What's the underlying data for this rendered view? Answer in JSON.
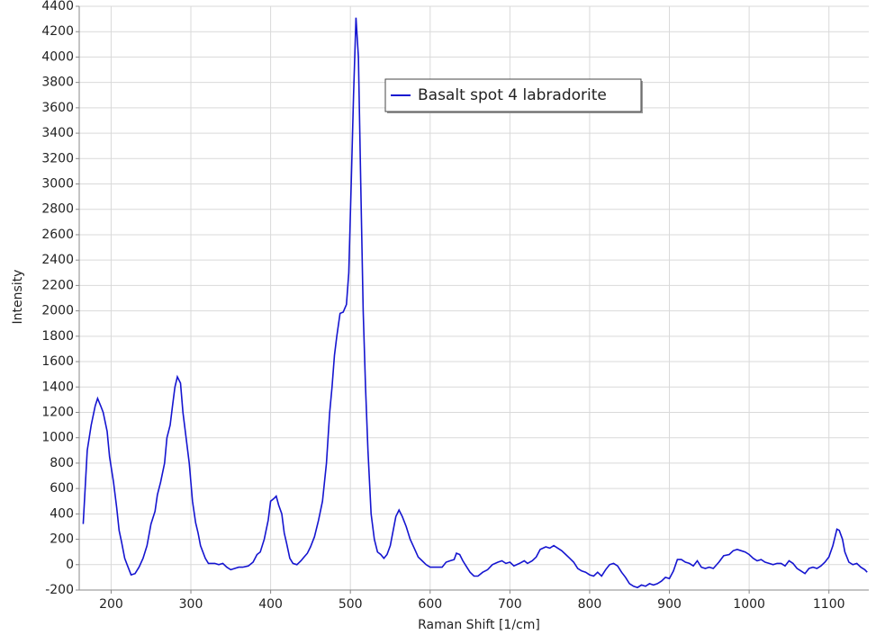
{
  "chart_data": {
    "type": "line",
    "x_label": "Raman Shift [1/cm]",
    "y_label": "Intensity",
    "xlim": [
      160,
      1150
    ],
    "ylim": [
      -200,
      4400
    ],
    "xticks": [
      200,
      300,
      400,
      500,
      600,
      700,
      800,
      900,
      1000,
      1100
    ],
    "yticks": [
      -200,
      0,
      200,
      400,
      600,
      800,
      1000,
      1200,
      1400,
      1600,
      1800,
      2000,
      2200,
      2400,
      2600,
      2800,
      3000,
      3200,
      3400,
      3600,
      3800,
      4000,
      4200,
      4400
    ],
    "grid": true,
    "legend": "top-center",
    "x": [
      165,
      170,
      175,
      180,
      183,
      187,
      190,
      195,
      198,
      203,
      207,
      210,
      213,
      217,
      220,
      225,
      230,
      235,
      240,
      245,
      250,
      255,
      258,
      262,
      267,
      270,
      274,
      277,
      280,
      283,
      287,
      290,
      294,
      298,
      302,
      306,
      309,
      312,
      318,
      322,
      330,
      335,
      340,
      345,
      350,
      355,
      360,
      365,
      372,
      378,
      383,
      387,
      392,
      397,
      400,
      404,
      407,
      410,
      414,
      417,
      420,
      424,
      428,
      433,
      438,
      442,
      446,
      450,
      455,
      460,
      465,
      470,
      474,
      477,
      480,
      483,
      487,
      491,
      495,
      498,
      501,
      504,
      507,
      510,
      513,
      516,
      519,
      522,
      526,
      530,
      534,
      538,
      542,
      546,
      550,
      554,
      557,
      561,
      565,
      570,
      575,
      580,
      585,
      590,
      595,
      600,
      605,
      610,
      615,
      620,
      625,
      630,
      633,
      637,
      641,
      646,
      650,
      655,
      660,
      666,
      672,
      678,
      685,
      690,
      695,
      700,
      705,
      712,
      718,
      722,
      728,
      733,
      738,
      745,
      750,
      755,
      760,
      765,
      770,
      775,
      780,
      785,
      790,
      795,
      800,
      805,
      810,
      815,
      820,
      825,
      830,
      835,
      840,
      845,
      850,
      855,
      860,
      865,
      870,
      875,
      880,
      885,
      890,
      895,
      900,
      905,
      910,
      915,
      920,
      925,
      930,
      935,
      940,
      945,
      950,
      955,
      962,
      968,
      975,
      980,
      985,
      990,
      995,
      1000,
      1005,
      1010,
      1015,
      1020,
      1025,
      1030,
      1035,
      1040,
      1045,
      1050,
      1055,
      1060,
      1065,
      1070,
      1075,
      1080,
      1085,
      1090,
      1095,
      1100,
      1105,
      1110,
      1113,
      1117,
      1120,
      1125,
      1130,
      1135,
      1140,
      1145,
      1148
    ],
    "series": [
      {
        "name": "Basalt spot 4 labradorite",
        "color": "#1515d0",
        "values": [
          320,
          900,
          1100,
          1250,
          1310,
          1250,
          1200,
          1050,
          850,
          650,
          450,
          270,
          180,
          50,
          0,
          -80,
          -70,
          -20,
          50,
          150,
          320,
          420,
          550,
          650,
          800,
          1000,
          1100,
          1250,
          1400,
          1480,
          1430,
          1200,
          1000,
          800,
          500,
          330,
          250,
          150,
          50,
          10,
          10,
          0,
          10,
          -20,
          -40,
          -30,
          -20,
          -20,
          -10,
          20,
          80,
          100,
          200,
          350,
          500,
          520,
          540,
          470,
          400,
          250,
          170,
          50,
          10,
          0,
          30,
          60,
          90,
          140,
          220,
          350,
          500,
          800,
          1200,
          1400,
          1650,
          1800,
          1980,
          1990,
          2050,
          2300,
          3000,
          3700,
          4310,
          4000,
          3000,
          2000,
          1400,
          900,
          400,
          200,
          100,
          80,
          50,
          80,
          150,
          280,
          380,
          430,
          380,
          300,
          200,
          130,
          60,
          30,
          0,
          -20,
          -20,
          -20,
          -20,
          20,
          30,
          40,
          90,
          80,
          30,
          -20,
          -60,
          -90,
          -90,
          -60,
          -40,
          0,
          20,
          30,
          10,
          20,
          -10,
          10,
          30,
          10,
          30,
          60,
          120,
          140,
          130,
          150,
          130,
          110,
          80,
          50,
          20,
          -30,
          -50,
          -60,
          -80,
          -90,
          -60,
          -90,
          -40,
          0,
          10,
          -10,
          -60,
          -100,
          -150,
          -170,
          -180,
          -160,
          -170,
          -150,
          -160,
          -150,
          -130,
          -100,
          -110,
          -50,
          40,
          40,
          20,
          10,
          -10,
          30,
          -20,
          -30,
          -20,
          -30,
          20,
          70,
          80,
          110,
          120,
          110,
          100,
          80,
          50,
          30,
          40,
          20,
          10,
          0,
          10,
          10,
          -10,
          30,
          10,
          -30,
          -50,
          -70,
          -30,
          -20,
          -30,
          -10,
          20,
          60,
          150,
          280,
          270,
          200,
          100,
          20,
          0,
          10,
          -20,
          -40,
          -60
        ]
      }
    ]
  }
}
